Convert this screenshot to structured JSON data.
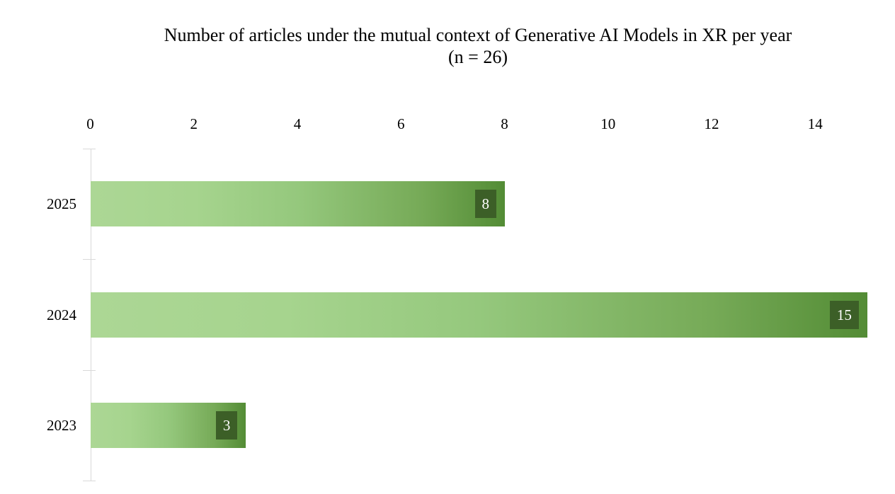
{
  "chart_data": {
    "type": "bar",
    "orientation": "horizontal",
    "title": "Number of articles under the mutual context of Generative AI Models in XR per year",
    "subtitle": "(n = 26)",
    "n_total": 26,
    "categories": [
      "2025",
      "2024",
      "2023"
    ],
    "values": [
      8,
      15,
      3
    ],
    "xlabel": "",
    "ylabel": "",
    "xlim": [
      0,
      15
    ],
    "x_ticks": [
      0,
      2,
      4,
      6,
      8,
      10,
      12,
      14
    ],
    "x_axis_position": "top",
    "grid": false,
    "legend": false,
    "colors": {
      "bar_gradient": [
        "#acd795",
        "#a6d48e",
        "#95c87d",
        "#76aa57",
        "#538c35"
      ],
      "value_label_background": "#3c5f27",
      "value_label_text": "#ffffff",
      "axis_line": "#d9d9d9",
      "title_text": "#000000"
    }
  }
}
